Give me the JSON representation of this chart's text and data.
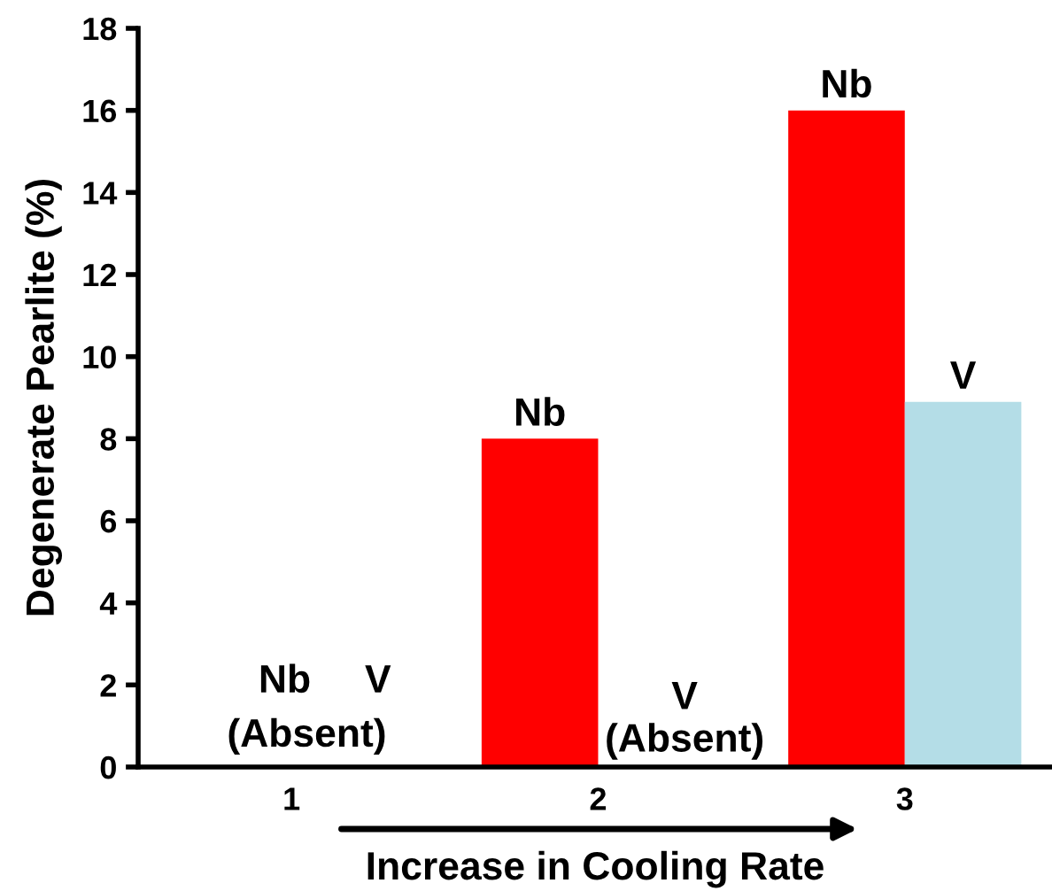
{
  "chart_data": {
    "type": "bar",
    "xlabel": "Increase in Cooling Rate",
    "ylabel": "Degenerate Pearlite (%)",
    "categories": [
      "1",
      "2",
      "3"
    ],
    "series": [
      {
        "color": "#ff0000",
        "values": [
          null,
          8,
          16
        ],
        "value_labels": [
          "Nb",
          "Nb",
          "Nb"
        ]
      },
      {
        "color": "#b4dde7",
        "values": [
          null,
          null,
          8.9
        ],
        "value_labels": [
          "V",
          "V\n(Absent)",
          "V"
        ]
      }
    ],
    "annotations": [
      "(Absent)"
    ],
    "ylim": [
      0,
      18
    ],
    "yticks": [
      0,
      2,
      4,
      6,
      8,
      10,
      12,
      14,
      16,
      18
    ],
    "grid": false,
    "legend": false
  }
}
